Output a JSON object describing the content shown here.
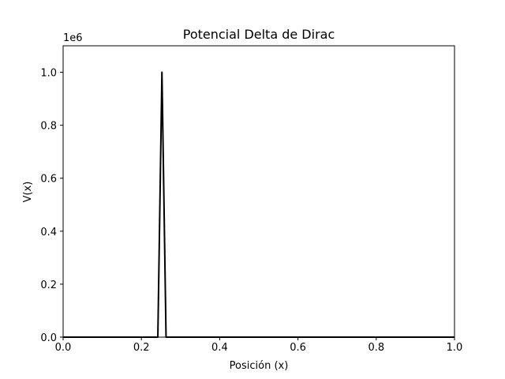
{
  "chart_data": {
    "type": "line",
    "title": "Potencial Delta de Dirac",
    "xlabel": "Posición (x)",
    "ylabel": "V(x)",
    "y_offset_label": "1e6",
    "xlim": [
      0.0,
      1.0
    ],
    "ylim": [
      0.0,
      1.1
    ],
    "x_ticks": [
      0.0,
      0.2,
      0.4,
      0.6,
      0.8,
      1.0
    ],
    "x_tick_labels": [
      "0.0",
      "0.2",
      "0.4",
      "0.6",
      "0.8",
      "1.0"
    ],
    "y_ticks": [
      0.0,
      0.2,
      0.4,
      0.6,
      0.8,
      1.0
    ],
    "y_tick_labels": [
      "0.0",
      "0.2",
      "0.4",
      "0.6",
      "0.8",
      "1.0"
    ],
    "grid": false,
    "series": [
      {
        "color": "#000000",
        "x": [
          0.0,
          0.242,
          0.2525,
          0.263,
          1.0
        ],
        "y": [
          0.0,
          0.0,
          1.0,
          0.0,
          0.0
        ]
      }
    ]
  }
}
